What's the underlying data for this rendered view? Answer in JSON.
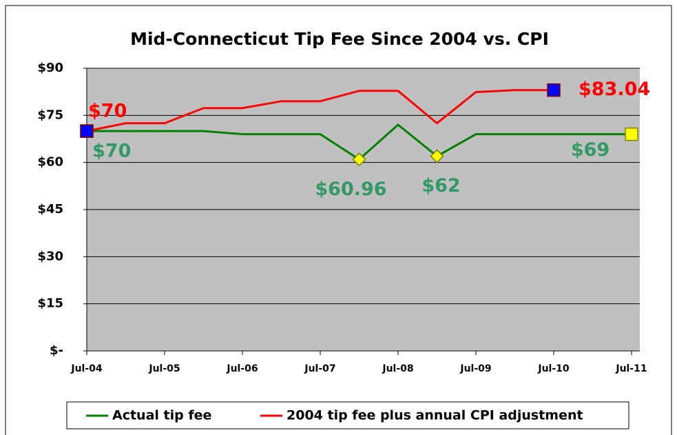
{
  "chart_data": {
    "type": "line",
    "title": "Mid-Connecticut Tip Fee Since 2004 vs. CPI",
    "categories": [
      "Jul-04",
      null,
      "Jul-05",
      null,
      "Jul-06",
      null,
      "Jul-07",
      null,
      "Jul-08",
      null,
      "Jul-09",
      null,
      "Jul-10",
      null,
      "Jul-11"
    ],
    "series": [
      {
        "name": "Actual tip fee",
        "color": "#008000",
        "marker_color": "#ffff00",
        "values": [
          70,
          70,
          70,
          70,
          69,
          69,
          69,
          60.96,
          72,
          62,
          69,
          69,
          69,
          69,
          69
        ],
        "value_labels": [
          "$70",
          null,
          null,
          null,
          null,
          null,
          null,
          "$60.96",
          null,
          "$62",
          null,
          null,
          null,
          null,
          "$69"
        ]
      },
      {
        "name": "2004 tip fee plus annual CPI adjustment",
        "color": "#ff0000",
        "marker_color": "#0000ff",
        "values": [
          70,
          72.5,
          72.5,
          77.3,
          77.3,
          79.5,
          79.5,
          82.8,
          82.8,
          72.5,
          82.4,
          83.04,
          83.04,
          null,
          null
        ],
        "value_labels": [
          "$70",
          null,
          null,
          null,
          null,
          null,
          null,
          null,
          null,
          null,
          null,
          null,
          "$83.04",
          null,
          null
        ]
      }
    ],
    "ylim": [
      0,
      90
    ],
    "yticks": [
      {
        "value": 0,
        "label": "$-"
      },
      {
        "value": 15,
        "label": "$15"
      },
      {
        "value": 30,
        "label": "$30"
      },
      {
        "value": 45,
        "label": "$45"
      },
      {
        "value": 60,
        "label": "$60"
      },
      {
        "value": 75,
        "label": "$75"
      },
      {
        "value": 90,
        "label": "$90"
      }
    ],
    "grid": true,
    "legend": "bottom"
  }
}
